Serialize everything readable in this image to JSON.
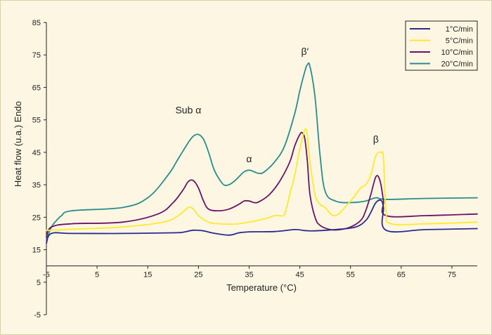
{
  "chart_data": {
    "type": "line",
    "title": "",
    "xlabel": "Temperature (°C)",
    "ylabel": "Heat flow (u.a.) Endo",
    "xlim": [
      -5,
      80
    ],
    "ylim": [
      -5,
      85
    ],
    "x_ticks": [
      -5,
      5,
      15,
      25,
      35,
      45,
      55,
      65,
      75
    ],
    "y_ticks": [
      -5,
      5,
      15,
      25,
      35,
      45,
      55,
      65,
      75,
      85
    ],
    "x_tick_labels": [
      "-5",
      "5",
      "15",
      "25",
      "35",
      "45",
      "55",
      "65",
      "75"
    ],
    "y_tick_labels": [
      "-5",
      "5",
      "15",
      "25",
      "35",
      "45",
      "55",
      "65",
      "75",
      "85"
    ],
    "grid": false,
    "legend_position": "top-right",
    "annotations": [
      {
        "text": "Sub α",
        "x": 23,
        "y": 57
      },
      {
        "text": "α",
        "x": 35,
        "y": 42
      },
      {
        "text": "β′",
        "x": 46,
        "y": 75
      },
      {
        "text": "β",
        "x": 60,
        "y": 48
      }
    ],
    "series": [
      {
        "name": "1°C/min",
        "color": "#2b2a8f",
        "x": [
          -5,
          -4,
          0,
          10,
          20,
          22,
          24,
          26,
          28,
          31,
          33,
          35,
          40,
          44,
          46,
          48,
          52,
          56,
          58,
          59,
          60,
          61,
          61.5,
          62,
          70,
          80
        ],
        "y": [
          17,
          20,
          20,
          20,
          20.2,
          20.4,
          21,
          20.8,
          20.1,
          19.5,
          20.2,
          20.5,
          20.6,
          21.2,
          20.9,
          20.8,
          21.2,
          22,
          24,
          26.5,
          29.5,
          30.2,
          28,
          21,
          21.2,
          21.5
        ]
      },
      {
        "name": "5°C/min",
        "color": "#ffeb2a",
        "x": [
          -5,
          -4,
          0,
          10,
          18,
          21,
          23,
          24,
          25,
          27,
          29,
          33,
          38,
          40,
          41,
          42,
          43,
          44,
          45,
          46,
          46.5,
          47,
          48,
          49,
          50,
          52,
          55,
          57,
          58,
          59,
          60,
          61,
          61.5,
          62,
          63,
          70,
          80
        ],
        "y": [
          21,
          21,
          21.3,
          22,
          23.5,
          25.5,
          28,
          27.5,
          25.5,
          23.5,
          23,
          23,
          24.5,
          25.5,
          25.5,
          26,
          32,
          38,
          46,
          52,
          50,
          42,
          32,
          29,
          28,
          25.5,
          30,
          34,
          35,
          38,
          44,
          45,
          43,
          27,
          23,
          23,
          23.5
        ]
      },
      {
        "name": "10°C/min",
        "color": "#6b1467",
        "x": [
          -5,
          -4,
          0,
          10,
          17,
          20,
          22,
          23,
          24,
          25,
          26,
          27,
          29,
          31,
          33,
          34,
          35,
          36,
          37,
          39,
          41,
          43,
          44,
          45,
          45.5,
          46,
          46.5,
          47,
          48,
          49,
          51,
          53,
          55,
          57,
          58,
          59,
          59.5,
          60,
          60.5,
          61,
          61.5,
          62,
          70,
          80
        ],
        "y": [
          19,
          22,
          23,
          23.5,
          26,
          29.5,
          33.5,
          36,
          36.3,
          34,
          30,
          27.5,
          27,
          27.5,
          29,
          30,
          30,
          29.5,
          29.8,
          32,
          36,
          42,
          47,
          50.5,
          51,
          49,
          42,
          32,
          25,
          22.5,
          21.2,
          21.2,
          22,
          24,
          27,
          32,
          35,
          37.5,
          37.5,
          35,
          30,
          25.5,
          25.5,
          26
        ]
      },
      {
        "name": "20°C/min",
        "color": "#2a8c8c",
        "x": [
          -5,
          -4,
          -3,
          -2,
          0,
          10,
          15,
          19,
          21,
          23,
          24,
          25,
          26,
          27,
          28,
          29,
          30,
          31,
          32,
          33,
          34,
          35,
          36,
          37,
          38,
          40,
          42,
          44,
          45,
          46,
          46.5,
          47,
          48,
          49,
          50,
          52,
          55,
          58,
          60,
          62,
          70,
          80
        ],
        "y": [
          18,
          22,
          24,
          25.5,
          27,
          28,
          31,
          38,
          43,
          48,
          50,
          50.5,
          49,
          45,
          40,
          37,
          35,
          35,
          36,
          37.5,
          39,
          39.5,
          39,
          38.5,
          39,
          42,
          47,
          57,
          64,
          70,
          72,
          71.5,
          62,
          44,
          33,
          30,
          29.5,
          30,
          31,
          30.5,
          30.8,
          31
        ]
      }
    ]
  }
}
